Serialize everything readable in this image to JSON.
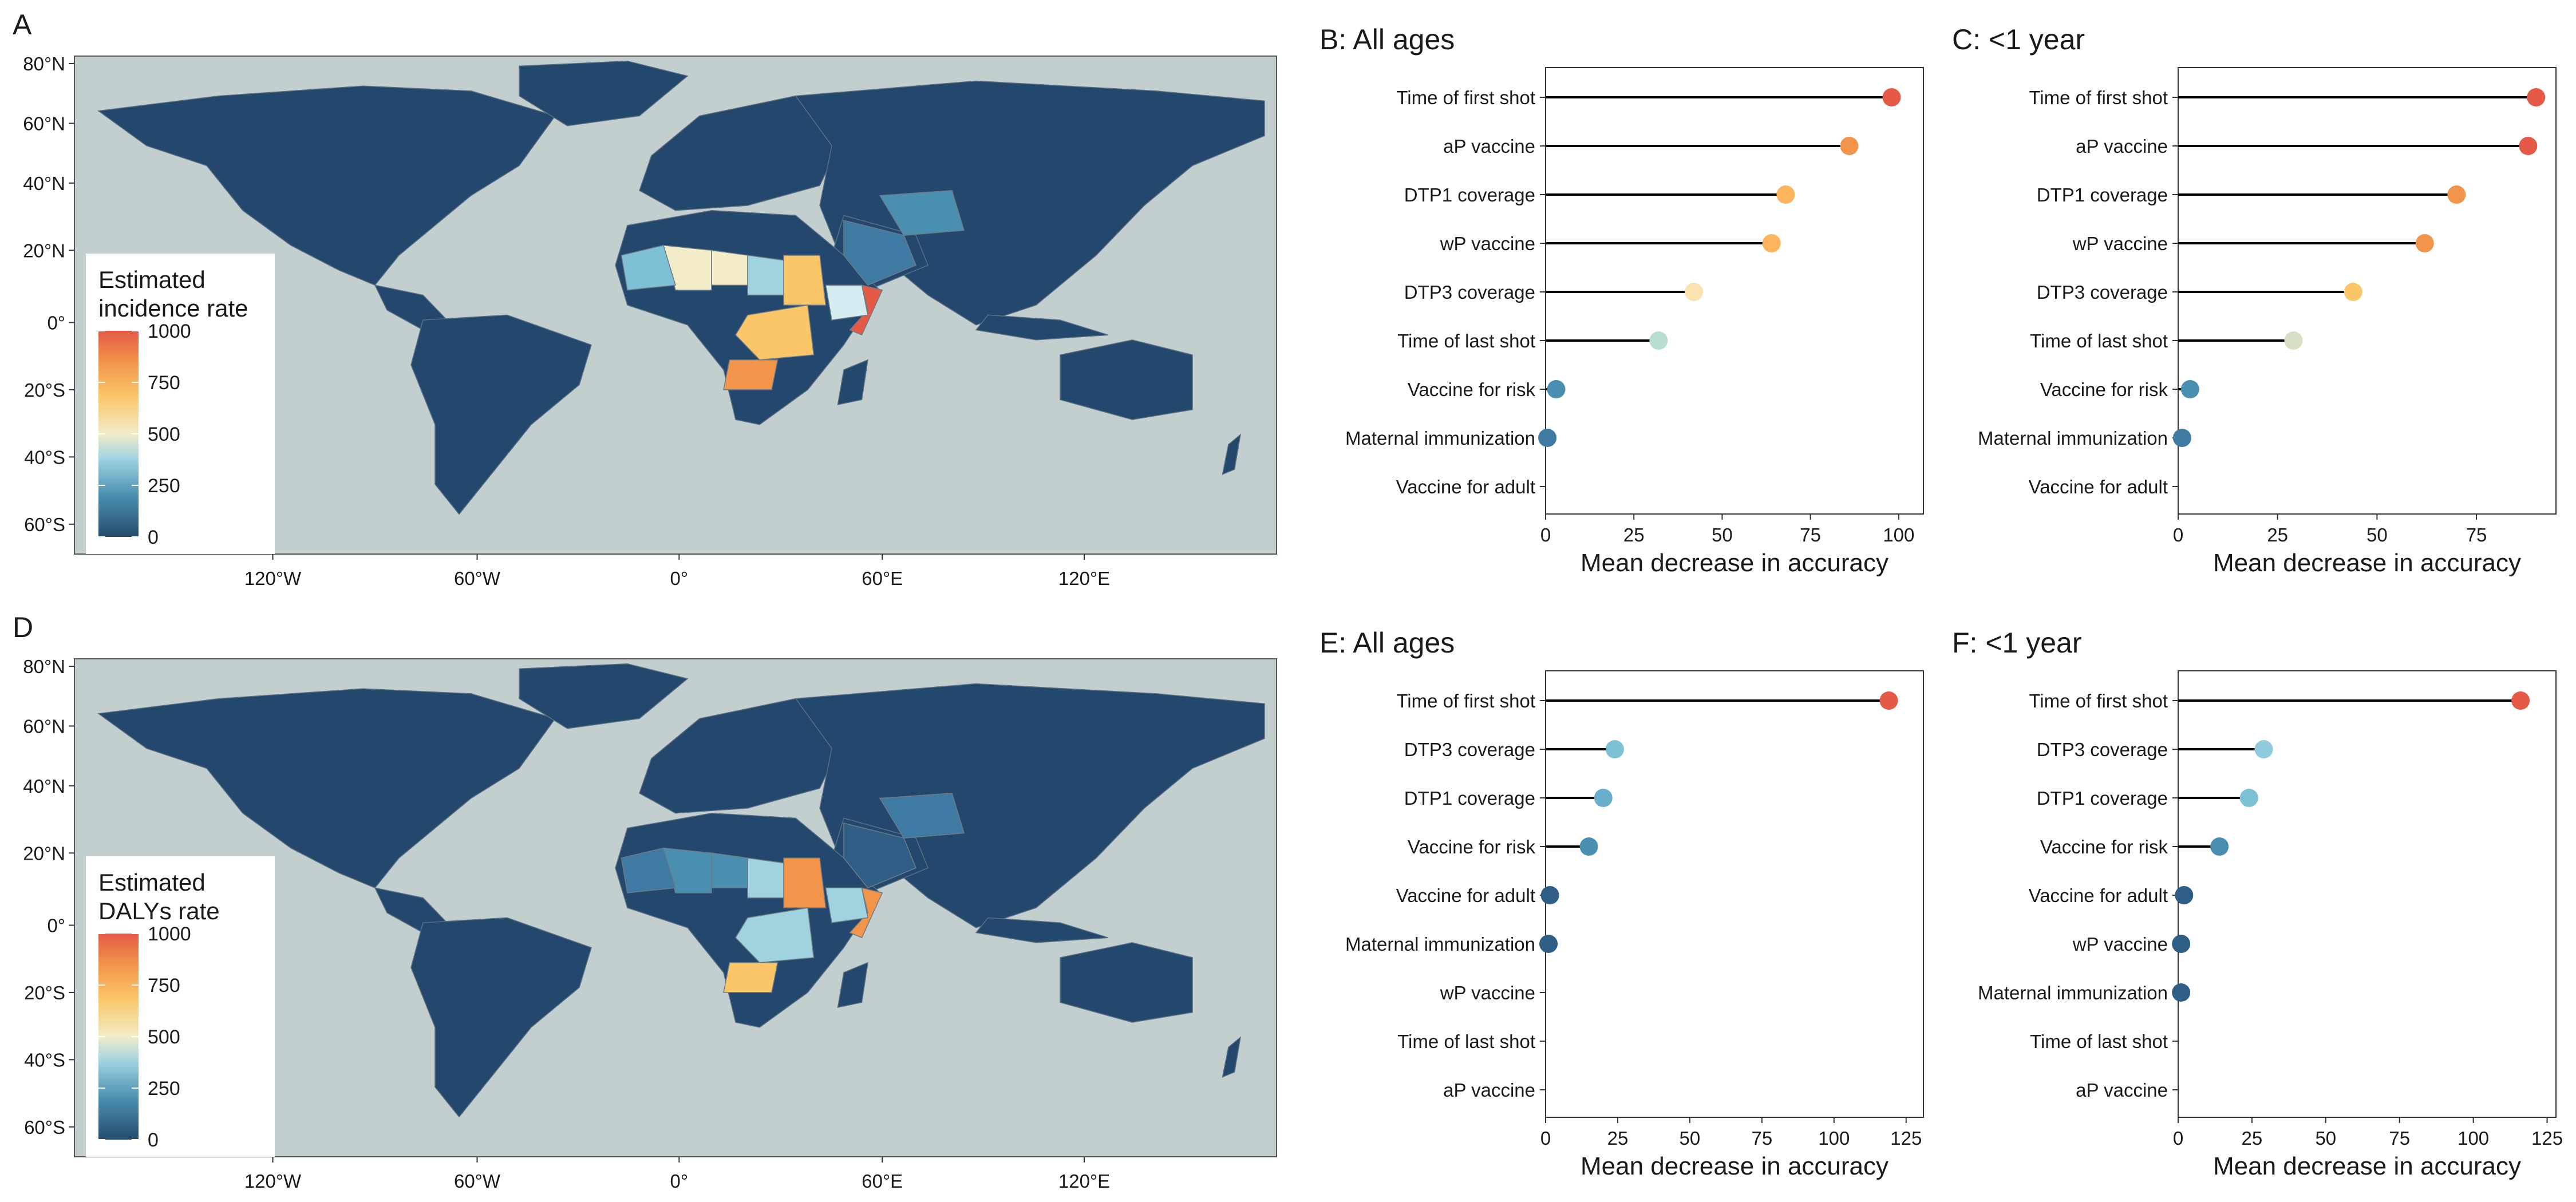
{
  "colors": {
    "ocean": "#c3cfcf",
    "land": "#24486d",
    "scale": [
      "#254b6e",
      "#4a8fb0",
      "#9fd3e0",
      "#f2ecc8",
      "#fbc66a",
      "#f2944a",
      "#e45a46"
    ]
  },
  "maps": [
    {
      "panel_label": "A",
      "legend_title": [
        "Estimated",
        "incidence rate"
      ],
      "legend_ticks": [
        "1000",
        "750",
        "500",
        "250",
        "0"
      ],
      "lat_labels": [
        "80°N",
        "60°N",
        "40°N",
        "20°N",
        "0°",
        "20°S",
        "40°S",
        "60°S"
      ],
      "lon_labels": [
        "120°W",
        "60°W",
        "0°",
        "60°E",
        "120°E"
      ],
      "regions": [
        {
          "name": "Somalia",
          "color": "#e45a46"
        },
        {
          "name": "Angola",
          "color": "#f2944a"
        },
        {
          "name": "Sudan",
          "color": "#fbc66a"
        },
        {
          "name": "DR Congo",
          "color": "#fbc66a"
        },
        {
          "name": "Mali",
          "color": "#f2ecc8"
        },
        {
          "name": "Niger",
          "color": "#f2ecc8"
        },
        {
          "name": "Ethiopia",
          "color": "#d5ecf0"
        },
        {
          "name": "Chad",
          "color": "#9fd3e0"
        },
        {
          "name": "Mauritania",
          "color": "#7ec1d6"
        },
        {
          "name": "Arabia",
          "color": "#3f7aa3"
        },
        {
          "name": "Central Asia",
          "color": "#4a8fb0"
        }
      ]
    },
    {
      "panel_label": "D",
      "legend_title": [
        "Estimated",
        "DALYs rate"
      ],
      "legend_ticks": [
        "1000",
        "750",
        "500",
        "250",
        "0"
      ],
      "lat_labels": [
        "80°N",
        "60°N",
        "40°N",
        "20°N",
        "0°",
        "20°S",
        "40°S",
        "60°S"
      ],
      "lon_labels": [
        "120°W",
        "60°W",
        "0°",
        "60°E",
        "120°E"
      ],
      "regions": [
        {
          "name": "Somalia",
          "color": "#f2944a"
        },
        {
          "name": "Sudan",
          "color": "#f2944a"
        },
        {
          "name": "Angola",
          "color": "#fbc66a"
        },
        {
          "name": "DR Congo",
          "color": "#9fd3e0"
        },
        {
          "name": "Chad",
          "color": "#9fd3e0"
        },
        {
          "name": "Ethiopia",
          "color": "#9fd3e0"
        },
        {
          "name": "Niger",
          "color": "#4a8fb0"
        },
        {
          "name": "Mali",
          "color": "#4a8fb0"
        },
        {
          "name": "Mauritania",
          "color": "#3f7aa3"
        },
        {
          "name": "Arabia",
          "color": "#2f5f86"
        },
        {
          "name": "Central Asia",
          "color": "#3f7aa3"
        }
      ]
    }
  ],
  "chart_data": [
    {
      "type": "lollipop",
      "title": "B: All ages",
      "xlabel": "Mean decrease in accuracy",
      "xlim": [
        0,
        107
      ],
      "xticks": [
        0,
        25,
        50,
        75,
        100
      ],
      "categories": [
        "Time of first shot",
        "aP vaccine",
        "DTP1 coverage",
        "wP vaccine",
        "DTP3 coverage",
        "Time of last shot",
        "Vaccine for risk",
        "Maternal immunization",
        "Vaccine for adult"
      ],
      "values": [
        98,
        86,
        68,
        64,
        42,
        32,
        3,
        0.5,
        0
      ],
      "colors": [
        "#e45a46",
        "#f2944a",
        "#fbb55e",
        "#fbb55e",
        "#fbe3b0",
        "#b9dcd3",
        "#4a8fb0",
        "#3f7aa3",
        "#254b6e"
      ]
    },
    {
      "type": "lollipop",
      "title": "C: <1 year",
      "xlabel": "Mean decrease in accuracy",
      "xlim": [
        0,
        95
      ],
      "xticks": [
        0,
        25,
        50,
        75
      ],
      "categories": [
        "Time of first shot",
        "aP vaccine",
        "DTP1 coverage",
        "wP vaccine",
        "DTP3 coverage",
        "Time of last shot",
        "Vaccine for risk",
        "Maternal immunization",
        "Vaccine for adult"
      ],
      "values": [
        90,
        88,
        70,
        62,
        44,
        29,
        3,
        1,
        0
      ],
      "colors": [
        "#e45a46",
        "#e45a46",
        "#f2944a",
        "#f2944a",
        "#fbc66a",
        "#d7e0c6",
        "#4a8fb0",
        "#3f7aa3",
        "#254b6e"
      ]
    },
    {
      "type": "lollipop",
      "title": "E: All ages",
      "xlabel": "Mean decrease in accuracy",
      "xlim": [
        0,
        131
      ],
      "xticks": [
        0,
        25,
        50,
        75,
        100,
        125
      ],
      "categories": [
        "Time of first shot",
        "DTP3 coverage",
        "DTP1 coverage",
        "Vaccine for risk",
        "Vaccine for adult",
        "Maternal immunization",
        "wP vaccine",
        "Time of last shot",
        "aP vaccine"
      ],
      "values": [
        119,
        24,
        20,
        15,
        1.5,
        1,
        0,
        0,
        0
      ],
      "colors": [
        "#e45a46",
        "#7ec1d6",
        "#6aaecb",
        "#4a8fb0",
        "#2f5f86",
        "#2f5f86",
        "#254b6e",
        "#254b6e",
        "#254b6e"
      ]
    },
    {
      "type": "lollipop",
      "title": "F: <1 year",
      "xlabel": "Mean decrease in accuracy",
      "xlim": [
        0,
        128
      ],
      "xticks": [
        0,
        25,
        50,
        75,
        100,
        125
      ],
      "categories": [
        "Time of first shot",
        "DTP3 coverage",
        "DTP1 coverage",
        "Vaccine for risk",
        "Vaccine for adult",
        "wP vaccine",
        "Maternal immunization",
        "Time of last shot",
        "aP vaccine"
      ],
      "values": [
        116,
        29,
        24,
        14,
        2,
        1,
        1,
        0,
        0
      ],
      "colors": [
        "#e45a46",
        "#8fcbdc",
        "#7ec1d6",
        "#4a8fb0",
        "#2f5f86",
        "#2f5f86",
        "#2f5f86",
        "#254b6e",
        "#254b6e"
      ]
    }
  ]
}
